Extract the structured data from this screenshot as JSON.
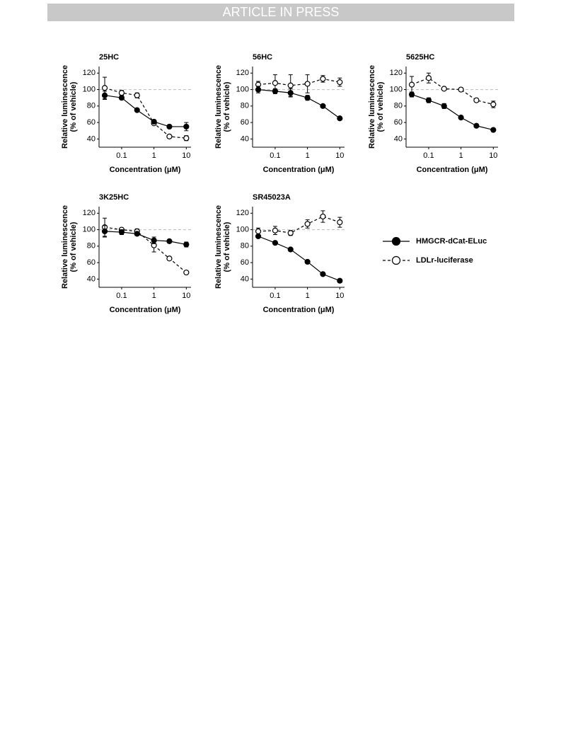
{
  "header": "ARTICLE IN PRESS",
  "chart_data": [
    {
      "type": "line",
      "title": "25HC",
      "xlabel": "Concentration (μM)",
      "ylabel": [
        "Relative luminescence",
        "(% of vehicle)"
      ],
      "x": [
        0.03,
        0.1,
        0.3,
        1,
        3,
        10
      ],
      "log_x": true,
      "xlim": [
        0.02,
        14
      ],
      "xticks": [
        0.1,
        1,
        10
      ],
      "ylim": [
        30,
        128
      ],
      "yticks": [
        40,
        60,
        80,
        100,
        120
      ],
      "reference_line": 100,
      "series": [
        {
          "name": "HMGCR-dCat-ELuc",
          "color": "#000000",
          "marker": "filled",
          "linestyle": "solid",
          "values": [
            93,
            90,
            75,
            61,
            55,
            55
          ],
          "errors": [
            5,
            1,
            1,
            2,
            1,
            5
          ]
        },
        {
          "name": "LDLr-luciferase",
          "color": "#000000",
          "marker": "open",
          "linestyle": "dashed",
          "values": [
            102,
            96,
            93,
            59,
            43,
            41
          ],
          "errors": [
            13,
            3,
            3,
            1,
            2,
            3
          ]
        }
      ]
    },
    {
      "type": "line",
      "title": "56HC",
      "xlabel": "Concentration (μM)",
      "ylabel": [
        "Relative luminescence",
        "(% of vehicle)"
      ],
      "x": [
        0.03,
        0.1,
        0.3,
        1,
        3,
        10
      ],
      "log_x": true,
      "xlim": [
        0.02,
        14
      ],
      "xticks": [
        0.1,
        1,
        10
      ],
      "ylim": [
        30,
        128
      ],
      "yticks": [
        40,
        60,
        80,
        100,
        120
      ],
      "reference_line": 100,
      "series": [
        {
          "name": "HMGCR-dCat-ELuc",
          "color": "#000000",
          "marker": "filled",
          "linestyle": "solid",
          "values": [
            100,
            98,
            96,
            90,
            80,
            65
          ],
          "errors": [
            4,
            3,
            5,
            3,
            1,
            1
          ]
        },
        {
          "name": "LDLr-luciferase",
          "color": "#000000",
          "marker": "open",
          "linestyle": "dashed",
          "values": [
            106,
            108,
            105,
            107,
            113,
            109
          ],
          "errors": [
            4,
            10,
            13,
            11,
            4,
            5
          ]
        }
      ]
    },
    {
      "type": "line",
      "title": "5625HC",
      "xlabel": "Concentration (μM)",
      "ylabel": [
        "Relative luminescence",
        "(% of vehicle)"
      ],
      "x": [
        0.03,
        0.1,
        0.3,
        1,
        3,
        10
      ],
      "log_x": true,
      "xlim": [
        0.02,
        14
      ],
      "xticks": [
        0.1,
        1,
        10
      ],
      "ylim": [
        30,
        128
      ],
      "yticks": [
        40,
        60,
        80,
        100,
        120
      ],
      "reference_line": 100,
      "series": [
        {
          "name": "HMGCR-dCat-ELuc",
          "color": "#000000",
          "marker": "filled",
          "linestyle": "solid",
          "values": [
            94,
            87,
            80,
            66,
            56,
            51
          ],
          "errors": [
            3,
            3,
            3,
            1,
            1,
            2
          ]
        },
        {
          "name": "LDLr-luciferase",
          "color": "#000000",
          "marker": "open",
          "linestyle": "dashed",
          "values": [
            106,
            114,
            101,
            100,
            87,
            82
          ],
          "errors": [
            10,
            6,
            1,
            2,
            1,
            4
          ]
        }
      ]
    },
    {
      "type": "line",
      "title": "3K25HC",
      "xlabel": "Concentration (μM)",
      "ylabel": [
        "Relative luminescence",
        "(% of vehicle)"
      ],
      "x": [
        0.03,
        0.1,
        0.3,
        1,
        3,
        10
      ],
      "log_x": true,
      "xlim": [
        0.02,
        14
      ],
      "xticks": [
        0.1,
        1,
        10
      ],
      "ylim": [
        30,
        128
      ],
      "yticks": [
        40,
        60,
        80,
        100,
        120
      ],
      "reference_line": 100,
      "series": [
        {
          "name": "HMGCR-dCat-ELuc",
          "color": "#000000",
          "marker": "filled",
          "linestyle": "solid",
          "values": [
            98,
            97,
            95,
            87,
            86,
            82
          ],
          "errors": [
            7,
            3,
            2,
            4,
            2,
            3
          ]
        },
        {
          "name": "LDLr-luciferase",
          "color": "#000000",
          "marker": "open",
          "linestyle": "dashed",
          "values": [
            103,
            100,
            98,
            81,
            65,
            48
          ],
          "errors": [
            11,
            2,
            3,
            8,
            2,
            1
          ]
        }
      ]
    },
    {
      "type": "line",
      "title": "SR45023A",
      "xlabel": "Concentration (μM)",
      "ylabel": [
        "Relative luminescence",
        "(% of vehicle)"
      ],
      "x": [
        0.03,
        0.1,
        0.3,
        1,
        3,
        10
      ],
      "log_x": true,
      "xlim": [
        0.02,
        14
      ],
      "xticks": [
        0.1,
        1,
        10
      ],
      "ylim": [
        30,
        128
      ],
      "yticks": [
        40,
        60,
        80,
        100,
        120
      ],
      "reference_line": 100,
      "series": [
        {
          "name": "HMGCR-dCat-ELuc",
          "color": "#000000",
          "marker": "filled",
          "linestyle": "solid",
          "values": [
            92,
            84,
            76,
            61,
            46,
            38
          ],
          "errors": [
            1,
            1,
            1,
            1,
            1,
            1
          ]
        },
        {
          "name": "LDLr-luciferase",
          "color": "#000000",
          "marker": "open",
          "linestyle": "dashed",
          "values": [
            98,
            99,
            96,
            107,
            116,
            109
          ],
          "errors": [
            4,
            5,
            3,
            5,
            7,
            6
          ]
        }
      ]
    }
  ]
}
